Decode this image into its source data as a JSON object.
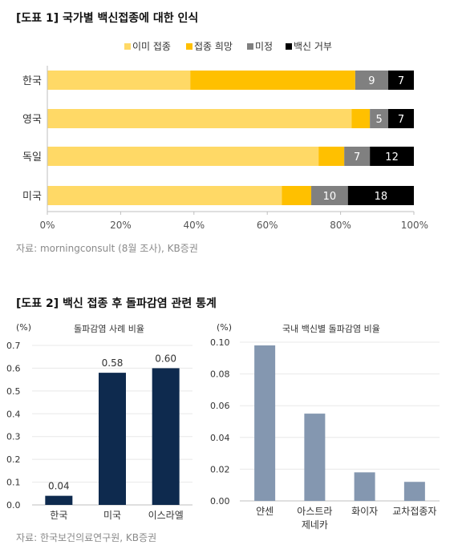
{
  "figure1": {
    "title": "[도표 1] 국가별 백신접종에 대한 인식",
    "source": "자료: morningconsult (8월 조사), KB증권"
  },
  "figure2": {
    "title": "[도표 2] 백신 접종 후 돌파감염 관련 통계",
    "source": "자료: 한국보건의료연구원, KB증권"
  },
  "colors": {
    "already": "#FFD966",
    "hope": "#FFC000",
    "undecided": "#808080",
    "refuse": "#000000",
    "navy": "#0E2A4E",
    "slate": "#8497B0"
  },
  "chart_data": [
    {
      "type": "bar",
      "orientation": "horizontal",
      "stacked": true,
      "categories": [
        "한국",
        "영국",
        "독일",
        "미국"
      ],
      "series": [
        {
          "name": "이미 접종",
          "values": [
            39,
            83,
            74,
            64
          ],
          "labels": [
            "",
            "",
            "",
            ""
          ]
        },
        {
          "name": "접종 희망",
          "values": [
            45,
            5,
            7,
            8
          ],
          "labels": [
            "",
            "",
            "",
            ""
          ]
        },
        {
          "name": "미정",
          "values": [
            9,
            5,
            7,
            10
          ],
          "labels": [
            "9",
            "5",
            "7",
            "10"
          ]
        },
        {
          "name": "백신 거부",
          "values": [
            7,
            7,
            12,
            18
          ],
          "labels": [
            "7",
            "7",
            "12",
            "18"
          ]
        }
      ],
      "xticks": [
        "0%",
        "20%",
        "40%",
        "60%",
        "80%",
        "100%"
      ],
      "xlim": [
        0,
        100
      ],
      "legend": "top-right"
    },
    {
      "type": "bar",
      "title": "돌파감염 사례 비율",
      "unit": "(%)",
      "categories": [
        "한국",
        "미국",
        "이스라엘"
      ],
      "values": [
        0.04,
        0.58,
        0.6
      ],
      "labels": [
        "0.04",
        "0.58",
        "0.60"
      ],
      "yticks": [
        "0.0",
        "0.1",
        "0.2",
        "0.3",
        "0.4",
        "0.5",
        "0.6",
        "0.7"
      ],
      "ylim": [
        0,
        0.7
      ]
    },
    {
      "type": "bar",
      "title": "국내 백신별 돌파감염 비율",
      "unit": "(%)",
      "categories": [
        "얀센",
        "아스트라\n제네카",
        "화이자",
        "교차접종자"
      ],
      "values": [
        0.098,
        0.055,
        0.018,
        0.012
      ],
      "yticks": [
        "0.00",
        "0.02",
        "0.04",
        "0.06",
        "0.08",
        "0.10"
      ],
      "ylim": [
        0,
        0.1
      ]
    }
  ]
}
